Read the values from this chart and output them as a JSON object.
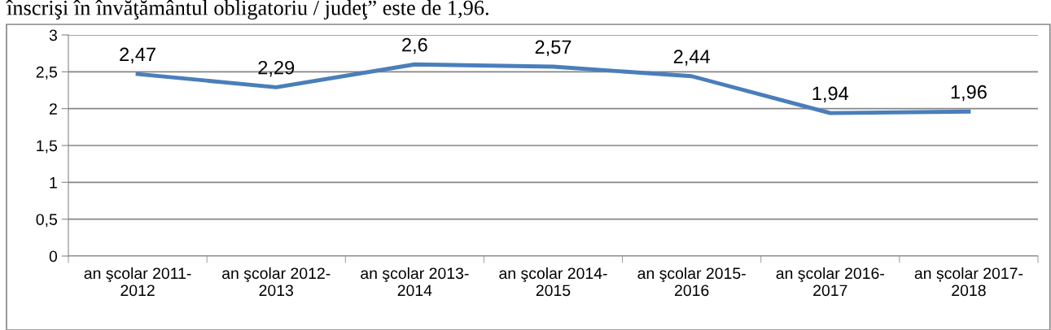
{
  "chart_data": {
    "type": "line",
    "annotations": [
      "înscrişi în învăţământul obligatoriu / judeţ” este de 1,96."
    ],
    "categories": [
      "an şcolar 2011-2012",
      "an şcolar 2012-2013",
      "an şcolar 2013-2014",
      "an şcolar 2014-2015",
      "an şcolar 2015-2016",
      "an şcolar 2016-2017",
      "an școlar 2017-2018"
    ],
    "series": [
      {
        "color": "#4a7ebb",
        "values": [
          2.47,
          2.29,
          2.6,
          2.57,
          2.44,
          1.94,
          1.96
        ],
        "value_labels": [
          "2,47",
          "2,29",
          "2,6",
          "2,57",
          "2,44",
          "1,94",
          "1,96"
        ]
      }
    ],
    "ylim": [
      0,
      3
    ],
    "yticks": [
      0,
      {
        "value": 0.5,
        "label": "0,5"
      },
      1,
      {
        "value": 1.5,
        "label": "1,5"
      },
      2,
      {
        "value": 2.5,
        "label": "2,5"
      },
      3
    ],
    "grid": "y",
    "legend": false,
    "marker": "none",
    "line_style": "solid"
  }
}
